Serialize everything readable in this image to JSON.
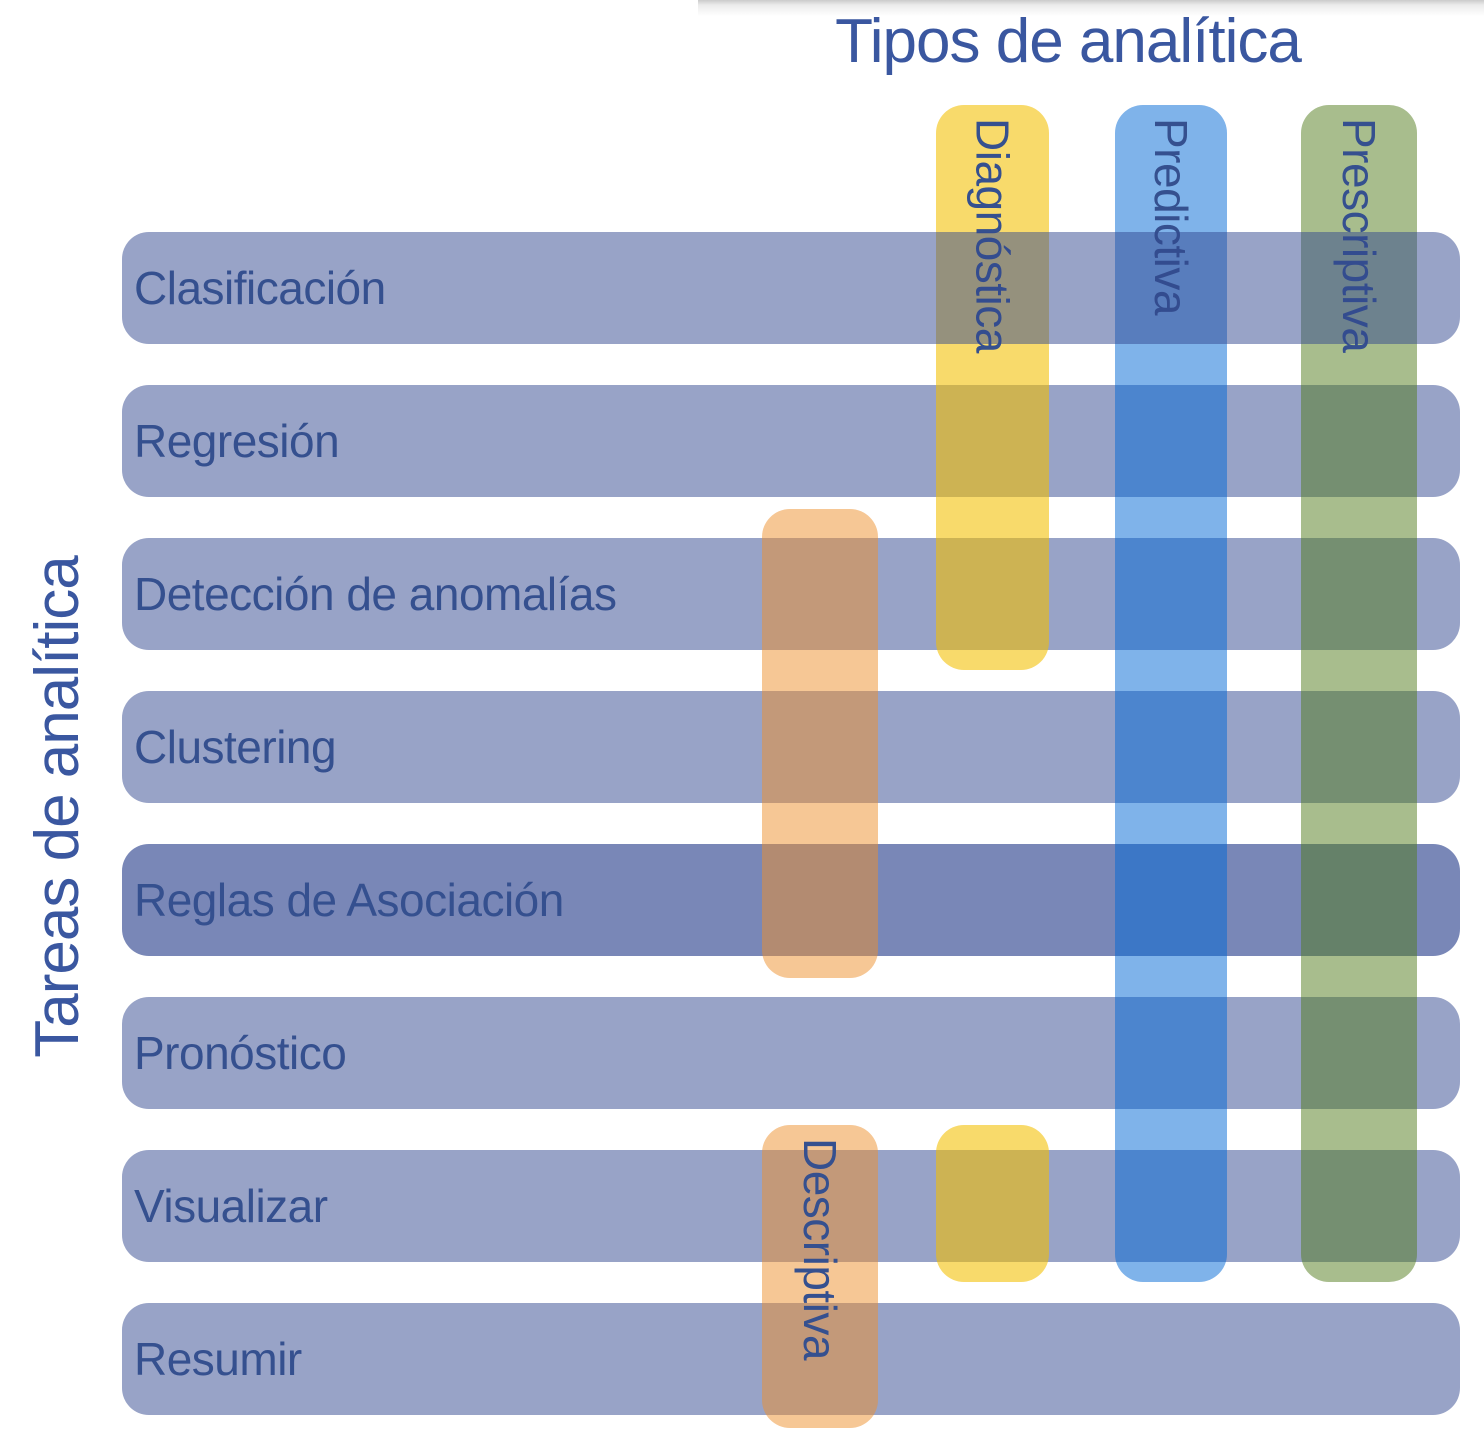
{
  "title": {
    "text": "Tipos de analítica"
  },
  "y_axis": {
    "text": "Tareas de analítica"
  },
  "colors": {
    "ink": "#35508f",
    "title_ink": "#3a57a0",
    "task_row_normal": "rgba(49,71,144,0.5)",
    "task_row_emphasized": "rgba(49,71,144,0.65)"
  },
  "tasks": [
    {
      "label": "Clasificación",
      "emphasized": false
    },
    {
      "label": "Regresión",
      "emphasized": false
    },
    {
      "label": "Detección de anomalías",
      "emphasized": false
    },
    {
      "label": "Clustering",
      "emphasized": false
    },
    {
      "label": "Reglas de Asociación",
      "emphasized": true
    },
    {
      "label": "Pronóstico",
      "emphasized": false
    },
    {
      "label": "Visualizar",
      "emphasized": false
    },
    {
      "label": "Resumir",
      "emphasized": false
    }
  ],
  "types": [
    {
      "label": "Descriptiva",
      "color": "rgba(237,143,43,0.5)",
      "covers_tasks": [
        [
          "Detección de anomalías",
          "Reglas de Asociación"
        ],
        [
          "Visualizar",
          "Resumir"
        ]
      ]
    },
    {
      "label": "Diagnóstica",
      "color": "rgba(243,192,0,0.58)",
      "covers_tasks": [
        [
          "Clasificación",
          "Detección de anomalías"
        ],
        [
          "Visualizar",
          "Visualizar"
        ]
      ]
    },
    {
      "label": "Predictiva",
      "color": "rgba(0,103,213,0.5)",
      "covers_tasks": [
        [
          "Clasificación",
          "Visualizar"
        ]
      ]
    },
    {
      "label": "Prescriptiva",
      "color": "rgba(81,123,27,0.5)",
      "covers_tasks": [
        [
          "Clasificación",
          "Visualizar"
        ]
      ]
    }
  ]
}
